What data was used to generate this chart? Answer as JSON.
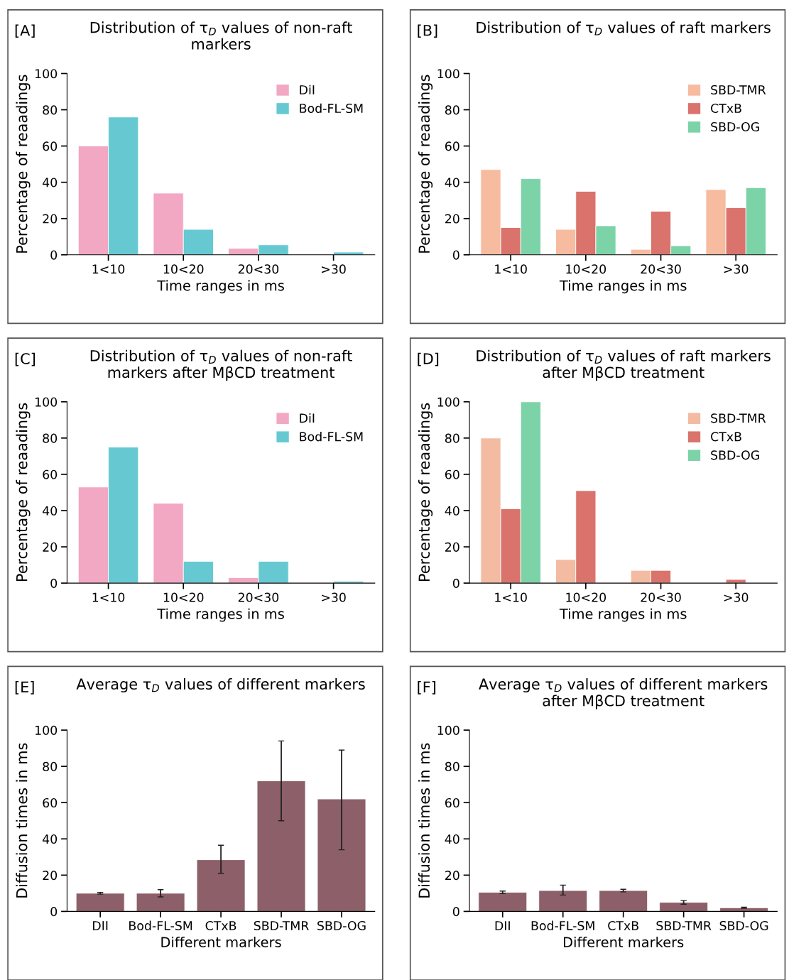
{
  "chart_data": [
    {
      "type": "bar",
      "title": "Distribution of τ$_{D}$ values of non-raft markers",
      "xlabel": "Time ranges in ms",
      "ylabel": "Percentage of reaadings",
      "annotations": [
        "[A]"
      ],
      "categories": [
        "1<10",
        "10<20",
        "20<30",
        ">30"
      ],
      "series": [
        {
          "name": "DiI",
          "color": "#f2a7c3",
          "values": [
            60,
            34,
            3.5,
            null
          ]
        },
        {
          "name": "Bod-FL-SM",
          "color": "#66c9d2",
          "values": [
            76,
            14,
            5.5,
            1.5
          ]
        }
      ],
      "ylim": [
        0,
        100
      ],
      "yticks": [
        0,
        20,
        40,
        60,
        80,
        100
      ],
      "legend": "top right",
      "grid": false
    },
    {
      "type": "bar",
      "title": "Distribution of τ$_{D}$ values of raft markers",
      "xlabel": "Time ranges in ms",
      "ylabel": "Percentage of reaadings",
      "annotations": [
        "[B]"
      ],
      "categories": [
        "1<10",
        "10<20",
        "20<30",
        ">30"
      ],
      "series": [
        {
          "name": "SBD-TMR",
          "color": "#f7bba0",
          "values": [
            47,
            14,
            3,
            36
          ]
        },
        {
          "name": "CTxB",
          "color": "#d9736c",
          "values": [
            15,
            35,
            24,
            26
          ]
        },
        {
          "name": "SBD-OG",
          "color": "#7dd3a8",
          "values": [
            42,
            16,
            5,
            37
          ]
        }
      ],
      "ylim": [
        0,
        100
      ],
      "yticks": [
        0,
        20,
        40,
        60,
        80,
        100
      ],
      "legend": "top right",
      "grid": false
    },
    {
      "type": "bar",
      "title": "Distribution of τ$_{D}$ values of non-raft markers after MβCD treatment",
      "xlabel": "Time ranges in ms",
      "ylabel": "Percentage of reaadings",
      "annotations": [
        "[C]"
      ],
      "categories": [
        "1<10",
        "10<20",
        "20<30",
        ">30"
      ],
      "series": [
        {
          "name": "DiI",
          "color": "#f2a7c3",
          "values": [
            53,
            44,
            3,
            null
          ]
        },
        {
          "name": "Bod-FL-SM",
          "color": "#66c9d2",
          "values": [
            75,
            12,
            12,
            1
          ]
        }
      ],
      "ylim": [
        0,
        100
      ],
      "yticks": [
        0,
        20,
        40,
        60,
        80,
        100
      ],
      "legend": "top right",
      "grid": false
    },
    {
      "type": "bar",
      "title": "Distribution of τ$_{D}$ values of raft markers after MβCD treatment",
      "xlabel": "Time ranges in ms",
      "ylabel": "Percentage of reaadings",
      "annotations": [
        "[D]"
      ],
      "categories": [
        "1<10",
        "10<20",
        "20<30",
        ">30"
      ],
      "series": [
        {
          "name": "SBD-TMR",
          "color": "#f2bba2",
          "values": [
            80,
            13,
            7,
            null
          ]
        },
        {
          "name": "CTxB",
          "color": "#d9736c",
          "values": [
            41,
            51,
            7,
            2
          ]
        },
        {
          "name": "SBD-OG",
          "color": "#7dd3a8",
          "values": [
            100,
            null,
            null,
            null
          ]
        }
      ],
      "ylim": [
        0,
        100
      ],
      "yticks": [
        0,
        20,
        40,
        60,
        80,
        100
      ],
      "legend": "top right",
      "grid": false
    },
    {
      "type": "bar",
      "title": "Average τ$_{D}$ values of different markers",
      "xlabel": "Different markers",
      "ylabel": "Diffusion times in ms",
      "annotations": [
        "[E]"
      ],
      "categories": [
        "DII",
        "Bod-FL-SM",
        "CTxB",
        "SBD-TMR",
        "SBD-OG"
      ],
      "series": [
        {
          "color": "#8c5f69",
          "values": [
            10,
            10,
            28.5,
            72,
            62
          ],
          "errors": [
            0.5,
            2,
            [
              21,
              36.5
            ],
            [
              50,
              94
            ],
            [
              34,
              89
            ]
          ]
        }
      ],
      "ylim": [
        0,
        100
      ],
      "yticks": [
        0,
        20,
        40,
        60,
        80,
        100
      ],
      "legend": false,
      "grid": false
    },
    {
      "type": "bar",
      "title": "Average τ$_{D}$ values of different markers after MβCD treatment",
      "xlabel": "Different markers",
      "ylabel": "Diffusion times in ms",
      "annotations": [
        "[F]"
      ],
      "categories": [
        "DII",
        "Bod-FL-SM",
        "CTxB",
        "SBD-TMR",
        "SBD-OG"
      ],
      "series": [
        {
          "color": "#8c5f69",
          "values": [
            10.5,
            11.5,
            11.5,
            5,
            2
          ],
          "errors": [
            0.7,
            [
              9,
              14.5
            ],
            0.7,
            1,
            0.3
          ]
        }
      ],
      "ylim": [
        0,
        100
      ],
      "yticks": [
        0,
        20,
        40,
        60,
        80,
        100
      ],
      "legend": false,
      "grid": false
    }
  ]
}
